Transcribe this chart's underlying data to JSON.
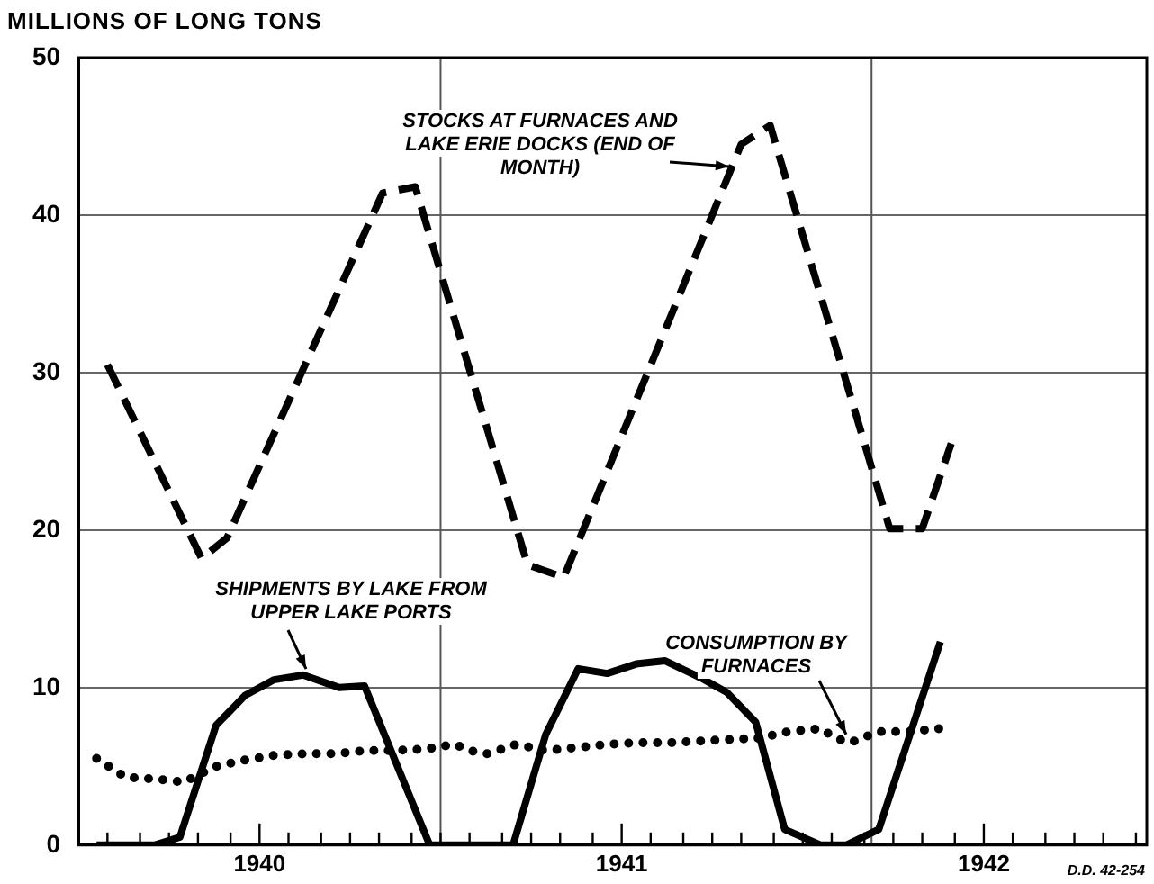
{
  "chart_data": {
    "type": "line",
    "ylabel": "MILLIONS OF LONG TONS",
    "xlim": [
      1939.5,
      1942.45
    ],
    "ylim": [
      0,
      50
    ],
    "yticks": [
      0,
      10,
      20,
      30,
      40,
      50
    ],
    "xticks": [
      {
        "value": 1939.58,
        "label": null
      },
      {
        "value": 1939.67,
        "label": null
      },
      {
        "value": 1939.75,
        "label": null
      },
      {
        "value": 1939.83,
        "label": null
      },
      {
        "value": 1939.92,
        "label": null
      },
      {
        "value": 1940,
        "label": "1940"
      },
      {
        "value": 1940.08,
        "label": null
      },
      {
        "value": 1940.17,
        "label": null
      },
      {
        "value": 1940.25,
        "label": null
      },
      {
        "value": 1940.33,
        "label": null
      },
      {
        "value": 1940.42,
        "label": null
      },
      {
        "value": 1940.5,
        "label": null
      },
      {
        "value": 1940.58,
        "label": null
      },
      {
        "value": 1940.67,
        "label": null
      },
      {
        "value": 1940.75,
        "label": null
      },
      {
        "value": 1940.83,
        "label": null
      },
      {
        "value": 1940.92,
        "label": null
      },
      {
        "value": 1941,
        "label": "1941"
      },
      {
        "value": 1941.08,
        "label": null
      },
      {
        "value": 1941.17,
        "label": null
      },
      {
        "value": 1941.25,
        "label": null
      },
      {
        "value": 1941.33,
        "label": null
      },
      {
        "value": 1941.42,
        "label": null
      },
      {
        "value": 1941.5,
        "label": null
      },
      {
        "value": 1941.58,
        "label": null
      },
      {
        "value": 1941.67,
        "label": null
      },
      {
        "value": 1941.75,
        "label": null
      },
      {
        "value": 1941.83,
        "label": null
      },
      {
        "value": 1941.92,
        "label": null
      },
      {
        "value": 1942,
        "label": "1942"
      },
      {
        "value": 1942.08,
        "label": null
      },
      {
        "value": 1942.17,
        "label": null
      },
      {
        "value": 1942.25,
        "label": null
      },
      {
        "value": 1942.33,
        "label": null
      },
      {
        "value": 1942.42,
        "label": null
      }
    ],
    "grid": "y",
    "legend": false,
    "marker": "none",
    "series": [
      {
        "name": "STOCKS AT FURNACES AND LAKE ERIE DOCKS (END OF MONTH)",
        "color": "#000000",
        "line_style": "dashed",
        "x": [
          1939.58,
          1939.84,
          1939.91,
          1940.34,
          1940.43,
          1940.74,
          1940.84,
          1941.33,
          1941.41,
          1941.74,
          1941.83,
          1941.91
        ],
        "values": [
          30.5,
          18.2,
          19.5,
          41.4,
          41.8,
          17.8,
          17.0,
          44.5,
          45.7,
          20.1,
          20.1,
          25.5
        ]
      },
      {
        "name": "SHIPMENTS BY LAKE FROM UPPER LAKE PORTS",
        "color": "#000000",
        "line_style": "solid",
        "x": [
          1939.55,
          1939.71,
          1939.78,
          1939.88,
          1939.96,
          1940.04,
          1940.12,
          1940.22,
          1940.29,
          1940.47,
          1940.7,
          1940.79,
          1940.88,
          1940.96,
          1941.04,
          1941.12,
          1941.22,
          1941.29,
          1941.37,
          1941.45,
          1941.55,
          1941.62,
          1941.71,
          1941.88
        ],
        "values": [
          0,
          0,
          0.5,
          7.6,
          9.5,
          10.5,
          10.8,
          10.0,
          10.1,
          0,
          0,
          7.0,
          11.2,
          10.9,
          11.5,
          11.7,
          10.6,
          9.7,
          7.8,
          1.0,
          0,
          0,
          1.0,
          12.9
        ]
      },
      {
        "name": "CONSUMPTION BY FURNACES",
        "color": "#000000",
        "line_style": "dotted",
        "x": [
          1939.55,
          1939.63,
          1939.71,
          1939.79,
          1939.88,
          1939.96,
          1940.04,
          1940.13,
          1940.21,
          1940.29,
          1940.37,
          1940.46,
          1940.54,
          1940.58,
          1940.63,
          1940.71,
          1940.79,
          1940.88,
          1940.96,
          1941.04,
          1941.13,
          1941.21,
          1941.29,
          1941.38,
          1941.46,
          1941.55,
          1941.59,
          1941.63,
          1941.71,
          1941.79,
          1941.88
        ],
        "values": [
          5.5,
          4.3,
          4.2,
          4.0,
          5.0,
          5.4,
          5.7,
          5.8,
          5.8,
          6.0,
          6.0,
          6.1,
          6.4,
          6.0,
          5.8,
          6.4,
          6.0,
          6.2,
          6.4,
          6.5,
          6.5,
          6.6,
          6.7,
          6.8,
          7.2,
          7.4,
          6.8,
          6.5,
          7.2,
          7.2,
          7.4
        ]
      }
    ],
    "ref_lines": [
      {
        "axis": "x",
        "value": 1940.5,
        "color": "#555555"
      },
      {
        "axis": "x",
        "value": 1941.69,
        "color": "#555555"
      }
    ],
    "annotations": [
      "D.D. 42-254"
    ]
  }
}
